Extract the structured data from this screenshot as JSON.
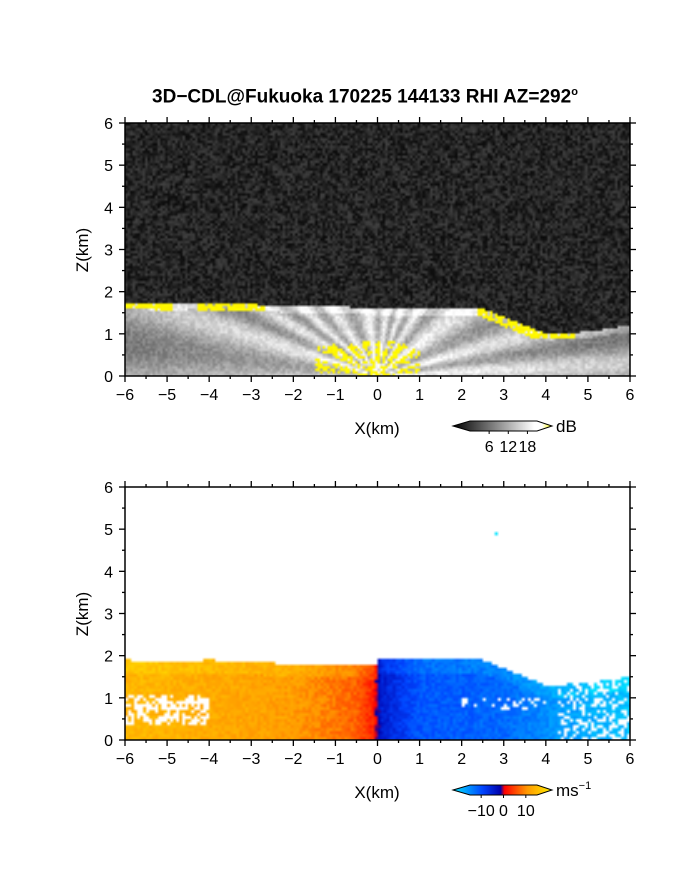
{
  "title": {
    "text": "3D−CDL@Fukuoka 170225 144133 RHI AZ=292",
    "sup": "o"
  },
  "chart_data": [
    {
      "type": "heatmap",
      "panel": "snr",
      "xlabel": "X(km)",
      "ylabel": "Z(km)",
      "xlim": [
        -6,
        6
      ],
      "ylim": [
        0,
        6
      ],
      "xticks": [
        "−6",
        "−5",
        "−4",
        "−3",
        "−2",
        "−1",
        "0",
        "1",
        "2",
        "3",
        "4",
        "5",
        "6"
      ],
      "yticks": [
        "0",
        "1",
        "2",
        "3",
        "4",
        "5",
        "6"
      ],
      "grid": false,
      "colorbar": {
        "unit": "dB",
        "tick_labels": [
          "6",
          "12",
          "18"
        ],
        "tick_values": [
          6,
          12,
          18
        ],
        "range": [
          0,
          21
        ],
        "colors": [
          "#000000",
          "#ffffff",
          "#ffff00"
        ]
      },
      "cloud_base_km": [
        {
          "x": -6,
          "z": 1.75
        },
        {
          "x": -5,
          "z": 1.7
        },
        {
          "x": -4,
          "z": 1.75
        },
        {
          "x": -3,
          "z": 1.7
        },
        {
          "x": -2,
          "z": 1.65
        },
        {
          "x": -1,
          "z": 1.65
        },
        {
          "x": 0,
          "z": 1.6
        },
        {
          "x": 1,
          "z": 1.6
        },
        {
          "x": 2,
          "z": 1.6
        },
        {
          "x": 2.5,
          "z": 1.6
        },
        {
          "x": 3,
          "z": 1.4
        },
        {
          "x": 4,
          "z": 1.0
        },
        {
          "x": 5,
          "z": 1.05
        },
        {
          "x": 6,
          "z": 1.2
        }
      ],
      "high_snr_regions": [
        {
          "x_range": [
            -6,
            -5.2
          ],
          "z_range": [
            1.6,
            1.8
          ]
        },
        {
          "x_range": [
            -5.3,
            -4.9
          ],
          "z_range": [
            1.55,
            1.75
          ]
        },
        {
          "x_range": [
            -4.3,
            -2.7
          ],
          "z_range": [
            1.55,
            1.75
          ]
        },
        {
          "x_range": [
            -1.5,
            1.0
          ],
          "z_range": [
            0.0,
            0.9
          ]
        },
        {
          "x_range": [
            2.4,
            4.7
          ],
          "z_range": [
            0.9,
            1.6
          ]
        }
      ]
    },
    {
      "type": "heatmap",
      "panel": "doppler_velocity",
      "xlabel": "X(km)",
      "ylabel": "Z(km)",
      "xlim": [
        -6,
        6
      ],
      "ylim": [
        0,
        6
      ],
      "xticks": [
        "−6",
        "−5",
        "−4",
        "−3",
        "−2",
        "−1",
        "0",
        "1",
        "2",
        "3",
        "4",
        "5",
        "6"
      ],
      "yticks": [
        "0",
        "1",
        "2",
        "3",
        "4",
        "5",
        "6"
      ],
      "grid": false,
      "colorbar": {
        "unit": "ms",
        "unit_sup": "−1",
        "tick_labels": [
          "−10",
          "0",
          "10"
        ],
        "tick_values": [
          -10,
          0,
          10
        ],
        "range": [
          -15,
          15
        ],
        "colors": [
          "#00e5ff",
          "#0044ff",
          "#0000aa",
          "#ff0000",
          "#ff9900",
          "#ffee00"
        ]
      },
      "velocity_samples": [
        {
          "x": -5.5,
          "v": 10
        },
        {
          "x": -4,
          "v": 9
        },
        {
          "x": -2,
          "v": 8
        },
        {
          "x": -0.5,
          "v": 5
        },
        {
          "x": -0.1,
          "v": 2
        },
        {
          "x": 0.1,
          "v": -3
        },
        {
          "x": 1,
          "v": -7
        },
        {
          "x": 3,
          "v": -8
        },
        {
          "x": 4.5,
          "v": -11
        },
        {
          "x": 5.8,
          "v": -13
        }
      ],
      "isolated_echo": {
        "x": 2.75,
        "z": 4.9
      }
    }
  ]
}
